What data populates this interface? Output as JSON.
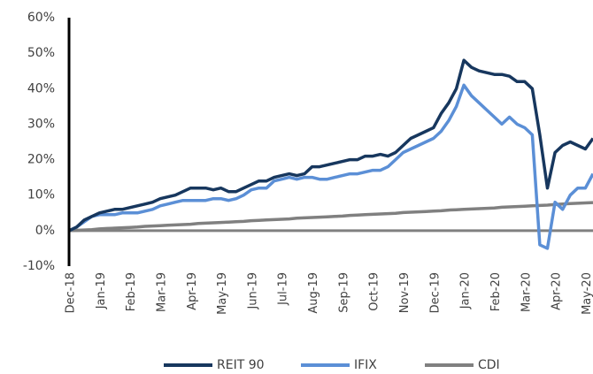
{
  "chart_data": {
    "type": "line",
    "categories": [
      "Dec-18",
      null,
      null,
      null,
      "Jan-19",
      null,
      null,
      null,
      "Feb-19",
      null,
      null,
      null,
      "Mar-19",
      null,
      null,
      null,
      "Apr-19",
      null,
      null,
      null,
      "May-19",
      null,
      null,
      null,
      "Jun-19",
      null,
      null,
      null,
      "Jul-19",
      null,
      null,
      null,
      "Aug-19",
      null,
      null,
      null,
      "Sep-19",
      null,
      null,
      null,
      "Oct-19",
      null,
      null,
      null,
      "Nov-19",
      null,
      null,
      null,
      "Dec-19",
      null,
      null,
      null,
      "Jan-20",
      null,
      null,
      null,
      "Feb-20",
      null,
      null,
      null,
      "Mar-20",
      null,
      null,
      null,
      "Apr-20",
      null,
      null,
      null,
      "May-20",
      null
    ],
    "series": [
      {
        "name": "REIT 90",
        "color": "#17375e",
        "values": [
          0,
          1,
          3,
          4,
          5,
          5.5,
          6,
          6,
          6.5,
          7,
          7.5,
          8,
          9,
          9.5,
          10,
          11,
          12,
          12,
          12,
          11.5,
          12,
          11,
          11,
          12,
          13,
          14,
          14,
          15,
          15.5,
          16,
          15.5,
          16,
          18,
          18,
          18.5,
          19,
          19.5,
          20,
          20,
          21,
          21,
          21.5,
          21,
          22,
          24,
          26,
          27,
          28,
          29,
          33,
          36,
          40,
          48,
          46,
          45,
          44.5,
          44,
          44,
          43.5,
          42,
          42,
          40,
          27,
          12,
          22,
          24,
          25,
          24,
          23,
          26
        ]
      },
      {
        "name": "IFIX",
        "color": "#5b8fd6",
        "values": [
          0,
          1,
          2.5,
          4,
          4.5,
          4.5,
          4.5,
          5,
          5,
          5,
          5.5,
          6,
          7,
          7.5,
          8,
          8.5,
          8.5,
          8.5,
          8.5,
          9,
          9,
          8.5,
          9,
          10,
          11.5,
          12,
          12,
          14,
          14.5,
          15,
          14.5,
          15,
          15,
          14.5,
          14.5,
          15,
          15.5,
          16,
          16,
          16.5,
          17,
          17,
          18,
          20,
          22,
          23,
          24,
          25,
          26,
          28,
          31,
          35,
          41,
          38,
          36,
          34,
          32,
          30,
          32,
          30,
          29,
          27,
          -4,
          -5,
          8,
          6,
          10,
          12,
          12,
          16
        ]
      },
      {
        "name": "CDI",
        "color": "#808080",
        "values": [
          0,
          0.1,
          0.2,
          0.3,
          0.5,
          0.6,
          0.7,
          0.8,
          0.9,
          1.0,
          1.2,
          1.3,
          1.4,
          1.5,
          1.6,
          1.7,
          1.8,
          2.0,
          2.1,
          2.2,
          2.3,
          2.4,
          2.5,
          2.6,
          2.8,
          2.9,
          3.0,
          3.1,
          3.2,
          3.3,
          3.5,
          3.6,
          3.7,
          3.8,
          3.9,
          4.0,
          4.1,
          4.3,
          4.4,
          4.5,
          4.6,
          4.7,
          4.8,
          4.9,
          5.1,
          5.2,
          5.3,
          5.4,
          5.5,
          5.6,
          5.8,
          5.9,
          6.0,
          6.1,
          6.2,
          6.3,
          6.4,
          6.6,
          6.7,
          6.8,
          6.9,
          7.0,
          7.1,
          7.2,
          7.4,
          7.5,
          7.6,
          7.7,
          7.8,
          7.9
        ]
      }
    ],
    "ylim": [
      -10,
      60
    ],
    "yticks": [
      {
        "value": -10,
        "label": "-10%"
      },
      {
        "value": 0,
        "label": "0%"
      },
      {
        "value": 10,
        "label": "10%"
      },
      {
        "value": 20,
        "label": "20%"
      },
      {
        "value": 30,
        "label": "30%"
      },
      {
        "value": 40,
        "label": "40%"
      },
      {
        "value": 50,
        "label": "50%"
      },
      {
        "value": 60,
        "label": "60%"
      }
    ],
    "legend": "bottom"
  }
}
